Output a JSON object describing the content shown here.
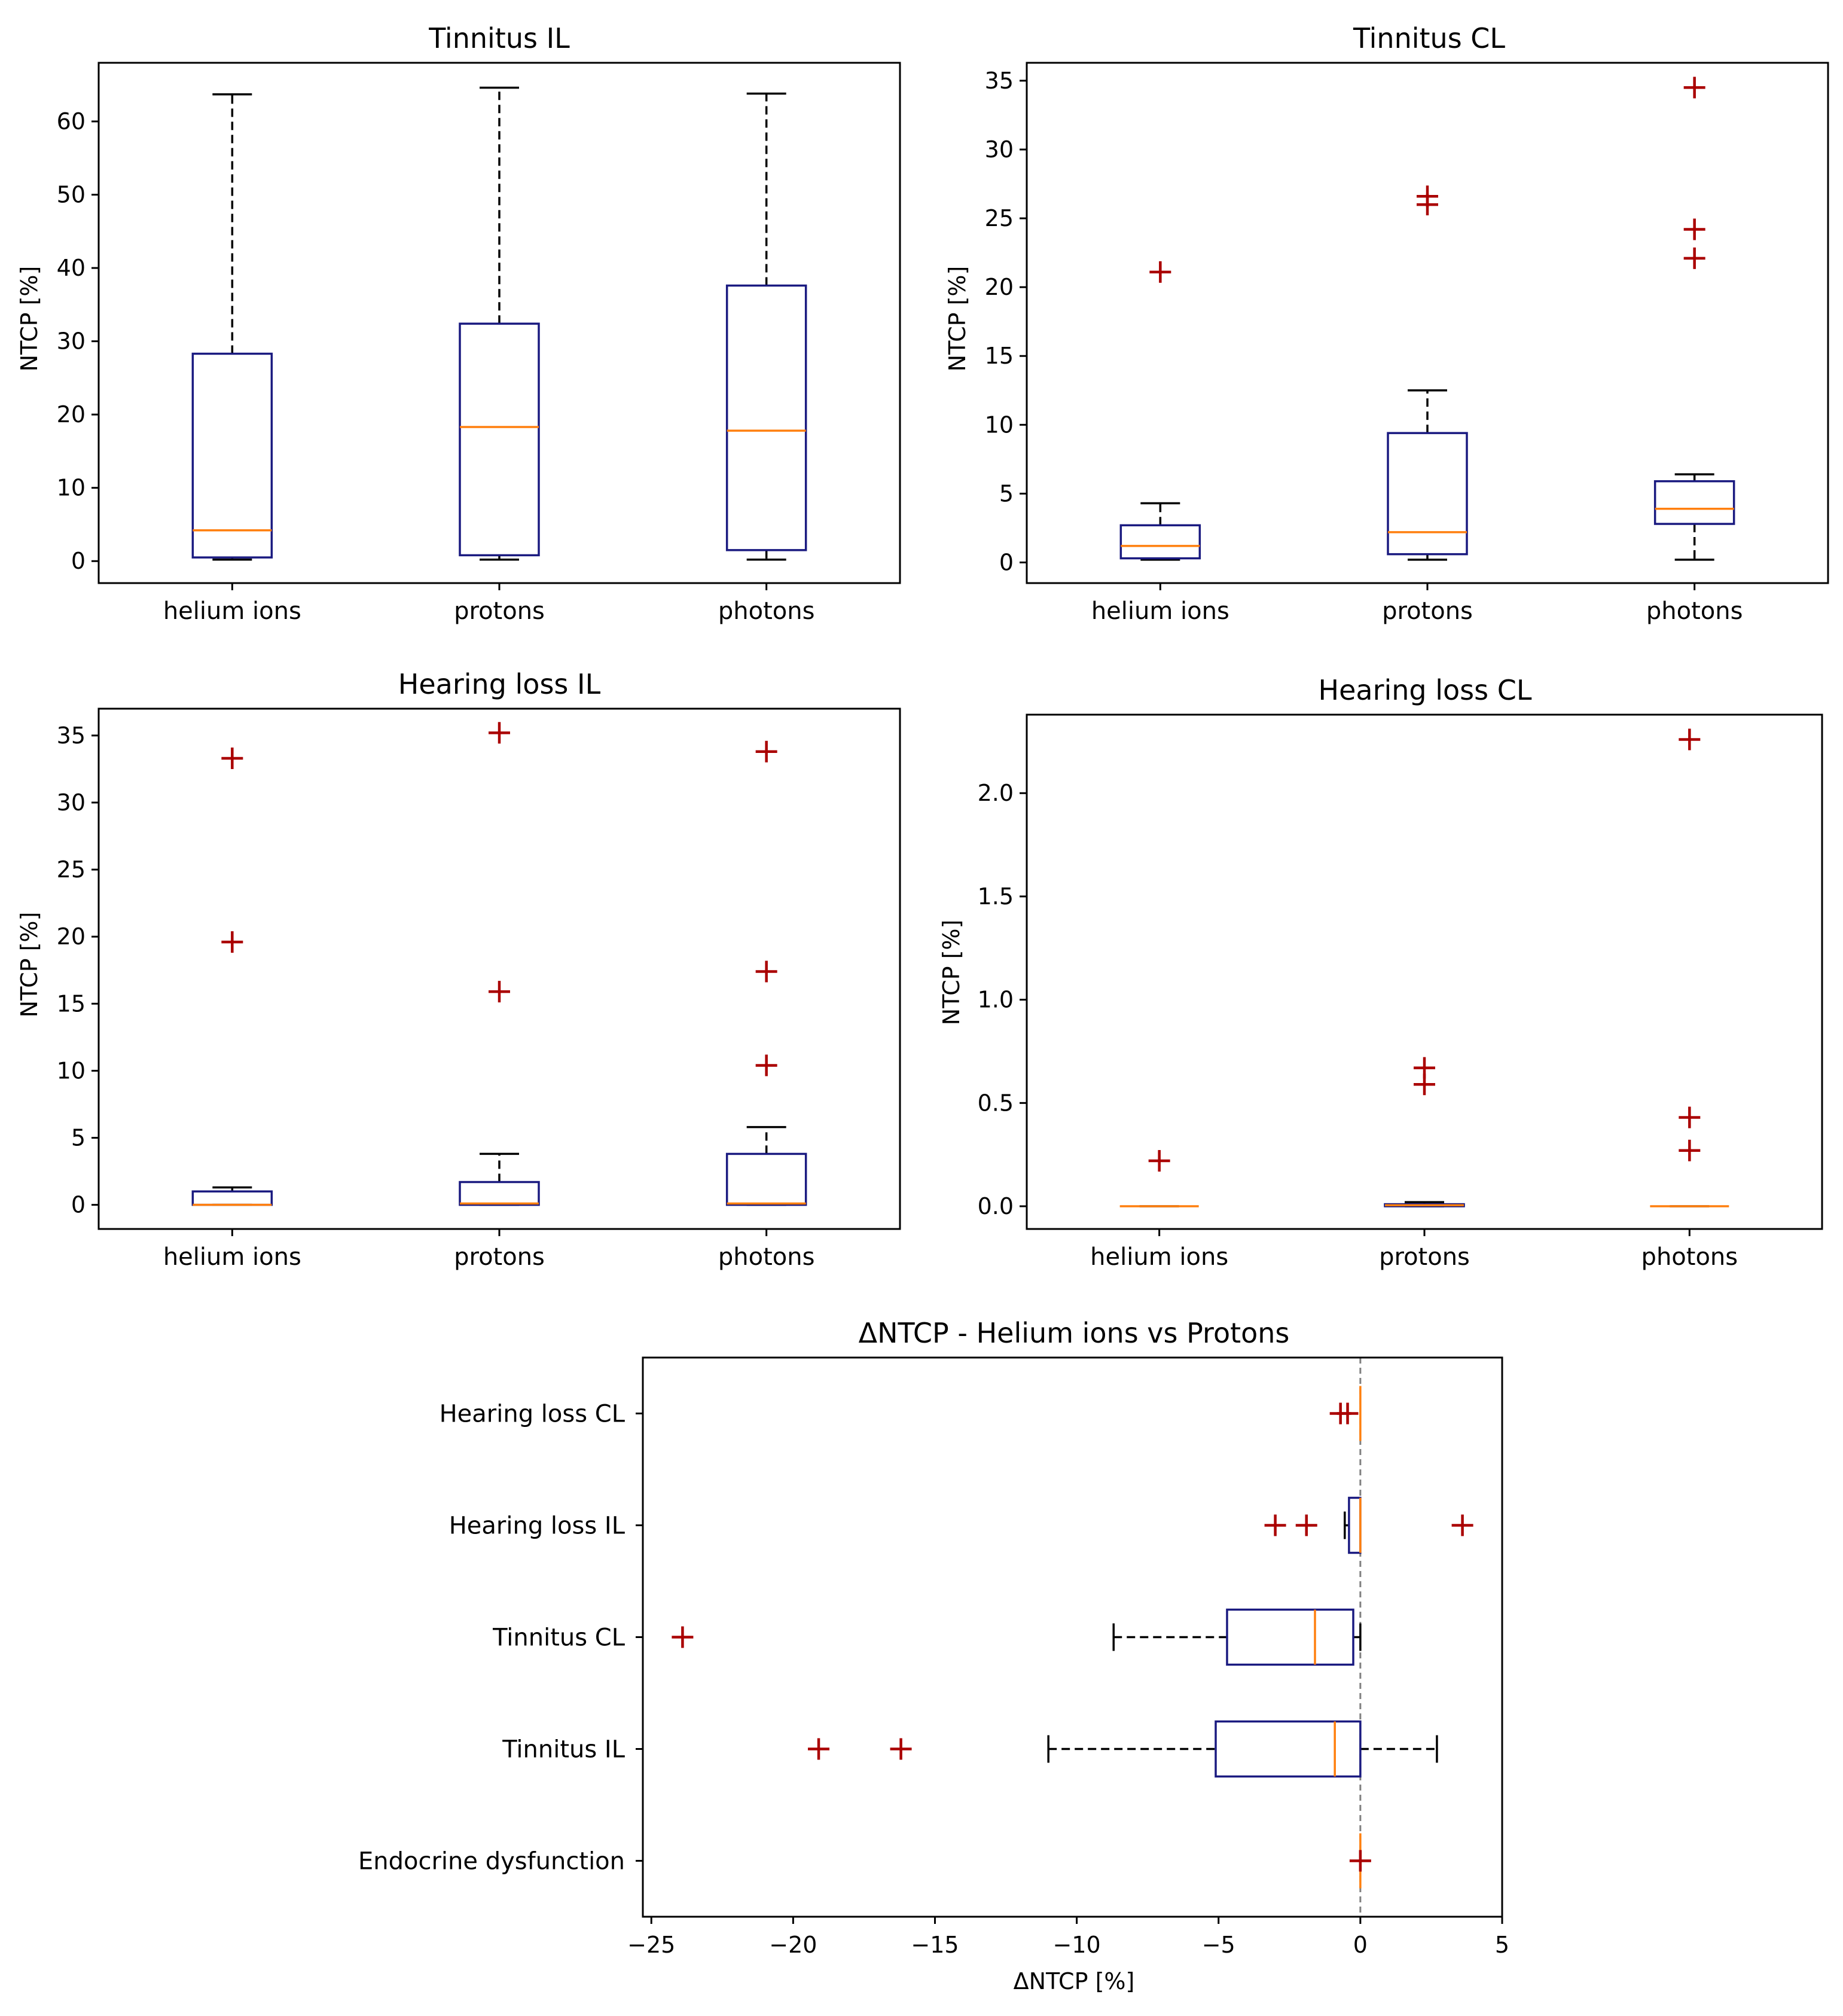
{
  "colors": {
    "box": "#1a1a80",
    "median": "#ff7f0e",
    "outlier": "#aa0000",
    "whisker": "#000000",
    "zero_line": "#808080"
  },
  "chart_data": [
    {
      "id": "tinnitus-il",
      "type": "boxplot",
      "orientation": "vertical",
      "title": "Tinnitus IL",
      "ylabel": "NTCP [%]",
      "ylim": [
        -3,
        68
      ],
      "yticks": [
        0,
        10,
        20,
        30,
        40,
        50,
        60
      ],
      "ytick_labels": [
        "0",
        "10",
        "20",
        "30",
        "40",
        "50",
        "60"
      ],
      "categories": [
        "helium ions",
        "protons",
        "photons"
      ],
      "boxes": [
        {
          "whislo": 0.2,
          "q1": 0.5,
          "med": 4.2,
          "q3": 28.3,
          "whishi": 63.7,
          "fliers": []
        },
        {
          "whislo": 0.2,
          "q1": 0.8,
          "med": 18.3,
          "q3": 32.4,
          "whishi": 64.6,
          "fliers": []
        },
        {
          "whislo": 0.2,
          "q1": 1.5,
          "med": 17.8,
          "q3": 37.6,
          "whishi": 63.8,
          "fliers": []
        }
      ]
    },
    {
      "id": "tinnitus-cl",
      "type": "boxplot",
      "orientation": "vertical",
      "title": "Tinnitus CL",
      "ylabel": "NTCP [%]",
      "ylim": [
        -1.5,
        36.3
      ],
      "yticks": [
        0,
        5,
        10,
        15,
        20,
        25,
        30,
        35
      ],
      "ytick_labels": [
        "0",
        "5",
        "10",
        "15",
        "20",
        "25",
        "30",
        "35"
      ],
      "categories": [
        "helium ions",
        "protons",
        "photons"
      ],
      "boxes": [
        {
          "whislo": 0.2,
          "q1": 0.3,
          "med": 1.2,
          "q3": 2.7,
          "whishi": 4.3,
          "fliers": [
            21.1
          ]
        },
        {
          "whislo": 0.2,
          "q1": 0.6,
          "med": 2.2,
          "q3": 9.4,
          "whishi": 12.5,
          "fliers": [
            26.0,
            26.6
          ]
        },
        {
          "whislo": 0.2,
          "q1": 2.8,
          "med": 3.9,
          "q3": 5.9,
          "whishi": 6.4,
          "fliers": [
            22.1,
            24.2,
            34.5
          ]
        }
      ]
    },
    {
      "id": "hearing-loss-il",
      "type": "boxplot",
      "orientation": "vertical",
      "title": "Hearing loss IL",
      "ylabel": "NTCP [%]",
      "ylim": [
        -1.8,
        37
      ],
      "yticks": [
        0,
        5,
        10,
        15,
        20,
        25,
        30,
        35
      ],
      "ytick_labels": [
        "0",
        "5",
        "10",
        "15",
        "20",
        "25",
        "30",
        "35"
      ],
      "categories": [
        "helium ions",
        "protons",
        "photons"
      ],
      "boxes": [
        {
          "whislo": 0.0,
          "q1": 0.0,
          "med": 0.0,
          "q3": 1.0,
          "whishi": 1.3,
          "fliers": [
            19.6,
            33.3
          ]
        },
        {
          "whislo": 0.0,
          "q1": 0.0,
          "med": 0.1,
          "q3": 1.7,
          "whishi": 3.8,
          "fliers": [
            15.9,
            35.2
          ]
        },
        {
          "whislo": 0.0,
          "q1": 0.0,
          "med": 0.1,
          "q3": 3.8,
          "whishi": 5.8,
          "fliers": [
            10.4,
            17.4,
            33.8
          ]
        }
      ]
    },
    {
      "id": "hearing-loss-cl",
      "type": "boxplot",
      "orientation": "vertical",
      "title": "Hearing loss CL",
      "ylabel": "NTCP [%]",
      "ylim": [
        -0.11,
        2.38
      ],
      "yticks": [
        0.0,
        0.5,
        1.0,
        1.5,
        2.0
      ],
      "ytick_labels": [
        "0.0",
        "0.5",
        "1.0",
        "1.5",
        "2.0"
      ],
      "categories": [
        "helium ions",
        "protons",
        "photons"
      ],
      "boxes": [
        {
          "whislo": 0.0,
          "q1": 0.0,
          "med": 0.0,
          "q3": 0.0,
          "whishi": 0.0,
          "fliers": [
            0.22
          ]
        },
        {
          "whislo": 0.0,
          "q1": 0.0,
          "med": 0.005,
          "q3": 0.01,
          "whishi": 0.02,
          "fliers": [
            0.59,
            0.67
          ]
        },
        {
          "whislo": 0.0,
          "q1": 0.0,
          "med": 0.0,
          "q3": 0.0,
          "whishi": 0.0,
          "fliers": [
            0.27,
            0.43,
            2.26
          ]
        }
      ]
    },
    {
      "id": "delta-ntcp",
      "type": "boxplot",
      "orientation": "horizontal",
      "title": "ΔNTCP - Helium ions vs Protons",
      "xlabel": "ΔNTCP [%]",
      "xlim": [
        -25.3,
        5
      ],
      "xticks": [
        -25,
        -20,
        -15,
        -10,
        -5,
        0,
        5
      ],
      "xtick_labels": [
        "−25",
        "−20",
        "−15",
        "−10",
        "−5",
        "0",
        "5"
      ],
      "reference_line": 0,
      "categories": [
        "Hearing loss CL",
        "Hearing loss IL",
        "Tinnitus CL",
        "Tinnitus IL",
        "Endocrine dysfunction"
      ],
      "boxes": [
        {
          "whislo": 0.0,
          "q1": 0.0,
          "med": 0.0,
          "q3": 0.0,
          "whishi": 0.0,
          "fliers": [
            -0.7,
            -0.45
          ]
        },
        {
          "whislo": -0.55,
          "q1": -0.4,
          "med": 0.0,
          "q3": 0.0,
          "whishi": 0.0,
          "fliers": [
            -3.0,
            -1.9,
            3.6
          ]
        },
        {
          "whislo": -8.7,
          "q1": -4.7,
          "med": -1.6,
          "q3": -0.25,
          "whishi": 0.0,
          "fliers": [
            -23.9
          ]
        },
        {
          "whislo": -11.0,
          "q1": -5.1,
          "med": -0.9,
          "q3": 0.0,
          "whishi": 2.7,
          "fliers": [
            -19.1,
            -16.2
          ]
        },
        {
          "whislo": 0.0,
          "q1": 0.0,
          "med": 0.0,
          "q3": 0.0,
          "whishi": 0.0,
          "fliers": [
            0.0
          ]
        }
      ]
    }
  ]
}
